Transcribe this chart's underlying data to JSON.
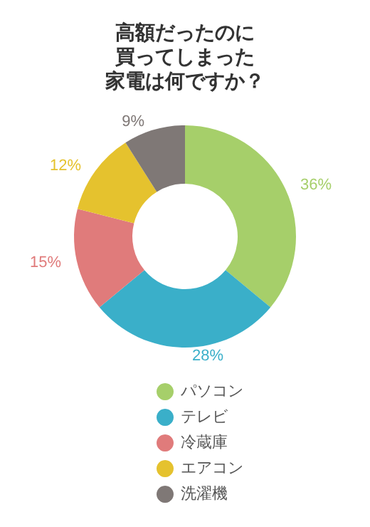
{
  "chart_data": {
    "type": "donut",
    "title": "高額だったのに買ってしまった家電は何ですか？",
    "categories": [
      "パソコン",
      "テレビ",
      "冷蔵庫",
      "エアコン",
      "洗濯機"
    ],
    "values": [
      36,
      28,
      15,
      12,
      9
    ],
    "colors": [
      "#a6cf6a",
      "#3aafc9",
      "#e07b7b",
      "#e5c22e",
      "#7f7876"
    ],
    "value_labels": [
      "36%",
      "28%",
      "15%",
      "12%",
      "9%"
    ],
    "legend": "bottom"
  }
}
